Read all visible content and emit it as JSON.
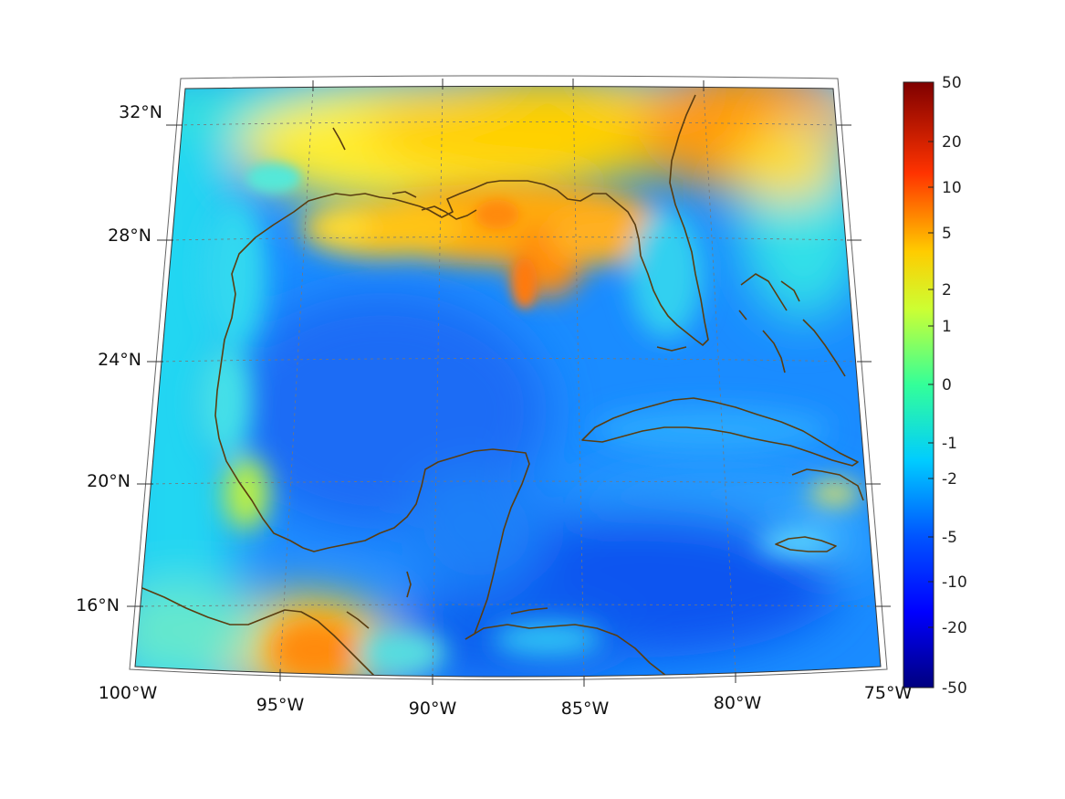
{
  "map": {
    "lon_labels": [
      "100°W",
      "95°W",
      "90°W",
      "85°W",
      "80°W",
      "75°W"
    ],
    "lat_labels": [
      "32°N",
      "28°N",
      "24°N",
      "20°N",
      "16°N"
    ],
    "lon_range": [
      -100,
      -75
    ],
    "lat_range": [
      14,
      33
    ],
    "grid": true,
    "coastline_color": "#5a3d10"
  },
  "colorbar": {
    "labels": [
      "50",
      "20",
      "10",
      "5",
      "2",
      "1",
      "0",
      "-1",
      "-2",
      "-5",
      "-10",
      "-20",
      "-50"
    ],
    "colormap": "jet",
    "placement": "right"
  }
}
